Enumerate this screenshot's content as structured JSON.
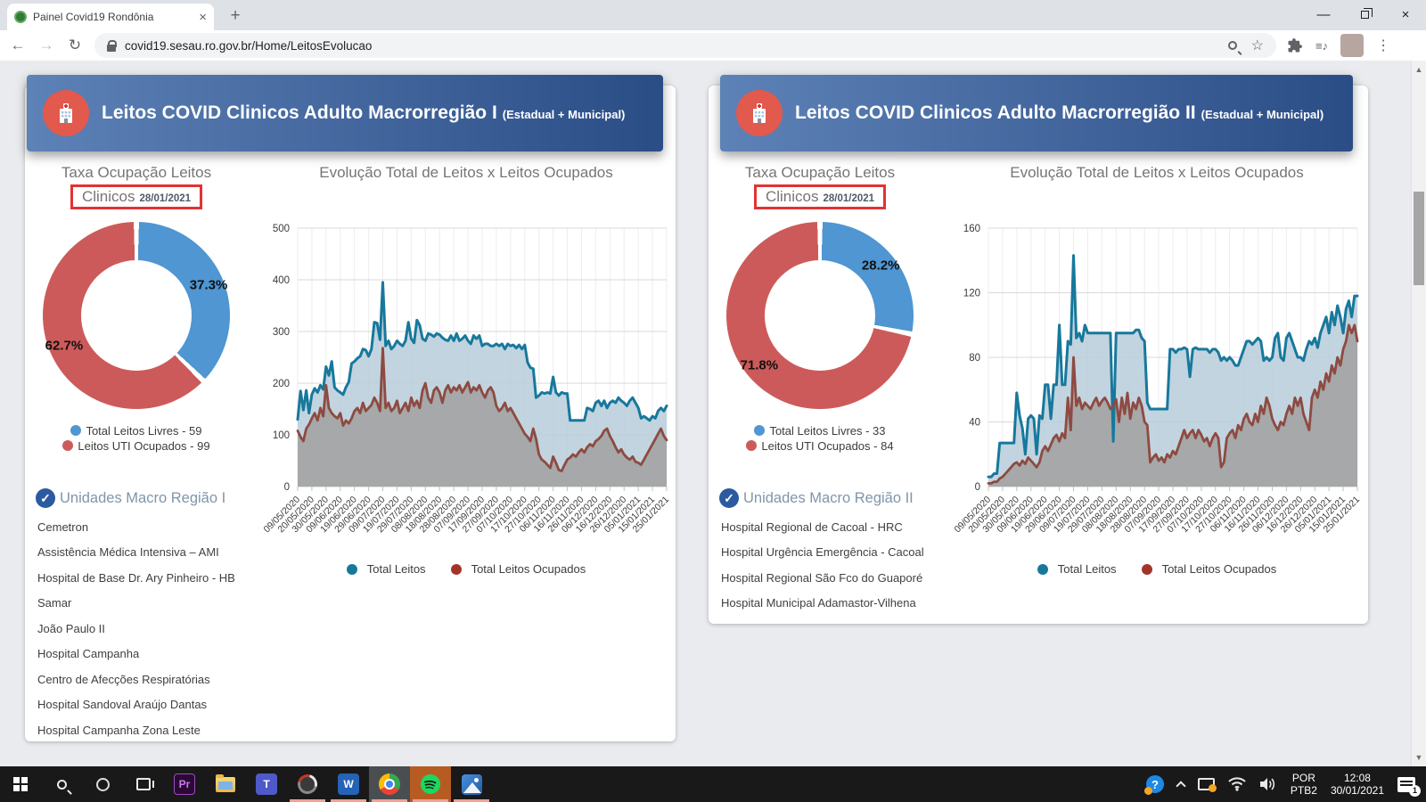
{
  "browser": {
    "tab_title": "Painel Covid19 Rondônia",
    "tab_close": "×",
    "new_tab": "+",
    "url": "covid19.sesau.ro.gov.br/Home/LeitosEvolucao",
    "minimize": "—",
    "close": "×",
    "back": "←",
    "forward": "→",
    "reload": "↻",
    "star": "☆",
    "playlist_note": "≡♪",
    "menu_dots": "⋮"
  },
  "colors": {
    "header_gradient_start": "#5d82b7",
    "header_gradient_end": "#2b4d86",
    "donut_blue": "#4f96d2",
    "donut_red": "#cd5a5a",
    "line_total": "#17789c",
    "line_occupied": "#8e4a41",
    "area_total": "#b7cdd9",
    "area_occupied": "#a3a3a3",
    "red_box": "#e23333",
    "check_blue": "#2c5aa0",
    "units_heading": "#8095aa"
  },
  "panels": [
    {
      "header_title": "Leitos COVID Clinicos Adulto Macrorregião I",
      "header_suffix": "(Estadual + Municipal)",
      "pie_title": "Taxa Ocupação Leitos",
      "pie_sub": "Clinicos",
      "pie_date": "28/01/2021",
      "pct_free": "37.3%",
      "pct_occ": "62.7%",
      "legend_free": "Total Leitos Livres - 59",
      "legend_occ": "Leitos UTI Ocupados - 99",
      "chart_title": "Evolução Total de Leitos x Leitos Ocupados",
      "line_legend_total": "Total Leitos",
      "line_legend_occ": "Total Leitos Ocupados",
      "units_title": "Unidades Macro Região I",
      "units_check": "✓",
      "units": [
        "Cemetron",
        "Assistência Médica Intensiva – AMI",
        "Hospital de Base Dr. Ary Pinheiro - HB",
        "Samar",
        "João Paulo II",
        "Hospital Campanha",
        "Centro de Afecções Respiratórias",
        "Hospital Sandoval Araújo Dantas",
        "Hospital Campanha Zona Leste"
      ]
    },
    {
      "header_title": "Leitos COVID Clinicos Adulto Macrorregião II",
      "header_suffix": "(Estadual + Municipal)",
      "pie_title": "Taxa Ocupação Leitos",
      "pie_sub": "Clinicos",
      "pie_date": "28/01/2021",
      "pct_free": "28.2%",
      "pct_occ": "71.8%",
      "legend_free": "Total Leitos Livres - 33",
      "legend_occ": "Leitos UTI Ocupados - 84",
      "chart_title": "Evolução Total de Leitos x Leitos Ocupados",
      "line_legend_total": "Total Leitos",
      "line_legend_occ": "Total Leitos Ocupados",
      "units_title": "Unidades Macro Região II",
      "units_check": "✓",
      "units": [
        "Hospital Regional de Cacoal - HRC",
        "Hospital Urgência Emergência - Cacoal",
        "Hospital Regional São Fco do Guaporé",
        "Hospital Municipal Adamastor-Vilhena"
      ]
    }
  ],
  "chart_data": [
    {
      "type": "pie",
      "title": "Taxa Ocupação Leitos Clinicos 28/01/2021 — Macrorregião I",
      "slices": [
        {
          "label": "Total Leitos Livres",
          "value": 59,
          "pct": 37.3,
          "color": "#4f96d2"
        },
        {
          "label": "Leitos UTI Ocupados",
          "value": 99,
          "pct": 62.7,
          "color": "#cd5a5a"
        }
      ]
    },
    {
      "type": "line",
      "title": "Evolução Total de Leitos x Leitos Ocupados — Macrorregião I",
      "ylim": [
        0,
        500
      ],
      "y_ticks": [
        0,
        100,
        200,
        300,
        400,
        500
      ],
      "x_ticks": [
        "09/05/2020",
        "20/05/2020",
        "30/05/2020",
        "09/06/2020",
        "19/06/2020",
        "29/06/2020",
        "09/07/2020",
        "19/07/2020",
        "29/07/2020",
        "08/08/2020",
        "18/08/2020",
        "28/08/2020",
        "07/09/2020",
        "17/09/2020",
        "27/09/2020",
        "07/10/2020",
        "17/10/2020",
        "27/10/2020",
        "06/11/2020",
        "16/11/2020",
        "26/11/2020",
        "06/12/2020",
        "16/12/2020",
        "26/12/2020",
        "05/01/2021",
        "15/01/2021",
        "25/01/2021"
      ],
      "legend_position": "bottom",
      "grid": true,
      "series": [
        {
          "name": "Total Leitos",
          "color": "#17789c",
          "values": [
            130,
            185,
            148,
            186,
            142,
            178,
            190,
            182,
            196,
            188,
            232,
            215,
            242,
            192,
            186,
            182,
            178,
            192,
            202,
            238,
            242,
            248,
            252,
            266,
            264,
            252,
            266,
            318,
            316,
            284,
            395,
            272,
            282,
            266,
            272,
            282,
            276,
            272,
            282,
            318,
            286,
            278,
            322,
            312,
            286,
            282,
            296,
            294,
            290,
            296,
            294,
            288,
            284,
            282,
            292,
            282,
            296,
            282,
            286,
            292,
            282,
            276,
            292,
            286,
            292,
            272,
            276,
            276,
            272,
            272,
            276,
            272,
            276,
            266,
            276,
            272,
            274,
            268,
            274,
            266,
            274,
            240,
            230,
            228,
            172,
            176,
            182,
            180,
            182,
            180,
            212,
            182,
            176,
            182,
            180,
            180,
            128,
            128,
            128,
            128,
            128,
            128,
            152,
            150,
            146,
            162,
            166,
            156,
            166,
            152,
            162,
            166,
            162,
            172,
            166,
            162,
            156,
            166,
            172,
            162,
            152,
            132,
            136,
            132,
            128,
            136,
            132,
            146,
            152,
            146,
            156
          ]
        },
        {
          "name": "Total Leitos Ocupados",
          "color": "#8e4a41",
          "values": [
            108,
            96,
            88,
            112,
            120,
            132,
            142,
            128,
            152,
            136,
            196,
            152,
            142,
            136,
            132,
            142,
            118,
            128,
            122,
            132,
            146,
            152,
            142,
            162,
            146,
            152,
            158,
            172,
            162,
            146,
            268,
            152,
            162,
            146,
            152,
            166,
            142,
            152,
            162,
            146,
            172,
            156,
            166,
            152,
            186,
            200,
            172,
            162,
            186,
            192,
            182,
            162,
            186,
            196,
            182,
            192,
            186,
            196,
            182,
            192,
            202,
            182,
            192,
            186,
            196,
            182,
            172,
            186,
            192,
            182,
            156,
            146,
            152,
            162,
            146,
            152,
            142,
            132,
            122,
            112,
            102,
            96,
            88,
            112,
            92,
            62,
            52,
            48,
            42,
            36,
            58,
            46,
            32,
            30,
            42,
            52,
            56,
            62,
            58,
            66,
            72,
            66,
            76,
            82,
            78,
            88,
            92,
            98,
            108,
            112,
            98,
            88,
            76,
            66,
            72,
            62,
            56,
            52,
            58,
            48,
            46,
            42,
            52,
            62,
            72,
            82,
            92,
            102,
            112,
            98,
            90
          ]
        }
      ]
    },
    {
      "type": "pie",
      "title": "Taxa Ocupação Leitos Clinicos 28/01/2021 — Macrorregião II",
      "slices": [
        {
          "label": "Total Leitos Livres",
          "value": 33,
          "pct": 28.2,
          "color": "#4f96d2"
        },
        {
          "label": "Leitos UTI Ocupados",
          "value": 84,
          "pct": 71.8,
          "color": "#cd5a5a"
        }
      ]
    },
    {
      "type": "line",
      "title": "Evolução Total de Leitos x Leitos Ocupados — Macrorregião II",
      "ylim": [
        0,
        160
      ],
      "y_ticks": [
        0,
        40,
        80,
        120,
        160
      ],
      "x_ticks": [
        "09/05/2020",
        "20/05/2020",
        "30/05/2020",
        "09/06/2020",
        "19/06/2020",
        "29/06/2020",
        "09/07/2020",
        "19/07/2020",
        "29/07/2020",
        "08/08/2020",
        "18/08/2020",
        "28/08/2020",
        "07/09/2020",
        "17/09/2020",
        "27/09/2020",
        "07/10/2020",
        "17/10/2020",
        "27/10/2020",
        "06/11/2020",
        "16/11/2020",
        "26/11/2020",
        "06/12/2020",
        "16/12/2020",
        "26/12/2020",
        "05/01/2021",
        "15/01/2021",
        "25/01/2021"
      ],
      "legend_position": "bottom",
      "grid": true,
      "series": [
        {
          "name": "Total Leitos",
          "color": "#17789c",
          "values": [
            6,
            6,
            8,
            8,
            27,
            27,
            27,
            27,
            27,
            27,
            58,
            44,
            36,
            20,
            42,
            44,
            42,
            20,
            44,
            42,
            63,
            63,
            42,
            63,
            63,
            100,
            63,
            63,
            90,
            88,
            143,
            92,
            95,
            90,
            100,
            95,
            95,
            95,
            95,
            95,
            95,
            95,
            95,
            95,
            28,
            95,
            95,
            95,
            95,
            95,
            95,
            95,
            97,
            97,
            92,
            90,
            52,
            48,
            48,
            48,
            48,
            48,
            48,
            48,
            85,
            85,
            83,
            85,
            85,
            86,
            85,
            68,
            85,
            86,
            85,
            85,
            85,
            85,
            83,
            85,
            85,
            83,
            78,
            80,
            78,
            80,
            78,
            75,
            75,
            80,
            85,
            90,
            90,
            88,
            90,
            92,
            90,
            78,
            80,
            78,
            80,
            92,
            95,
            80,
            78,
            92,
            95,
            90,
            85,
            80,
            80,
            78,
            85,
            90,
            88,
            92,
            86,
            95,
            100,
            105,
            95,
            108,
            100,
            112,
            105,
            95,
            110,
            115,
            105,
            118,
            118
          ]
        },
        {
          "name": "Total Leitos Ocupados",
          "color": "#8e4a41",
          "values": [
            2,
            2,
            3,
            3,
            5,
            6,
            8,
            10,
            12,
            14,
            15,
            13,
            16,
            14,
            18,
            16,
            14,
            12,
            15,
            22,
            25,
            22,
            26,
            30,
            32,
            28,
            33,
            30,
            55,
            35,
            80,
            50,
            55,
            48,
            52,
            50,
            48,
            52,
            55,
            50,
            53,
            55,
            52,
            48,
            50,
            54,
            40,
            55,
            45,
            58,
            42,
            52,
            48,
            55,
            50,
            40,
            38,
            15,
            18,
            20,
            16,
            18,
            15,
            20,
            18,
            22,
            20,
            25,
            30,
            35,
            30,
            33,
            35,
            30,
            35,
            32,
            28,
            30,
            25,
            30,
            33,
            30,
            12,
            15,
            30,
            33,
            35,
            30,
            38,
            35,
            42,
            45,
            40,
            38,
            45,
            40,
            50,
            45,
            55,
            50,
            42,
            38,
            35,
            40,
            38,
            45,
            50,
            45,
            55,
            50,
            55,
            45,
            40,
            35,
            55,
            60,
            55,
            65,
            60,
            70,
            65,
            75,
            70,
            80,
            75,
            85,
            90,
            100,
            95,
            100,
            90
          ]
        }
      ]
    }
  ],
  "taskbar": {
    "lang1": "POR",
    "lang2": "PTB2",
    "time": "12:08",
    "date": "30/01/2021",
    "badge": "1",
    "word_label": "W",
    "premiere_label": "Pr",
    "teams_label": "T",
    "help_label": "?"
  }
}
